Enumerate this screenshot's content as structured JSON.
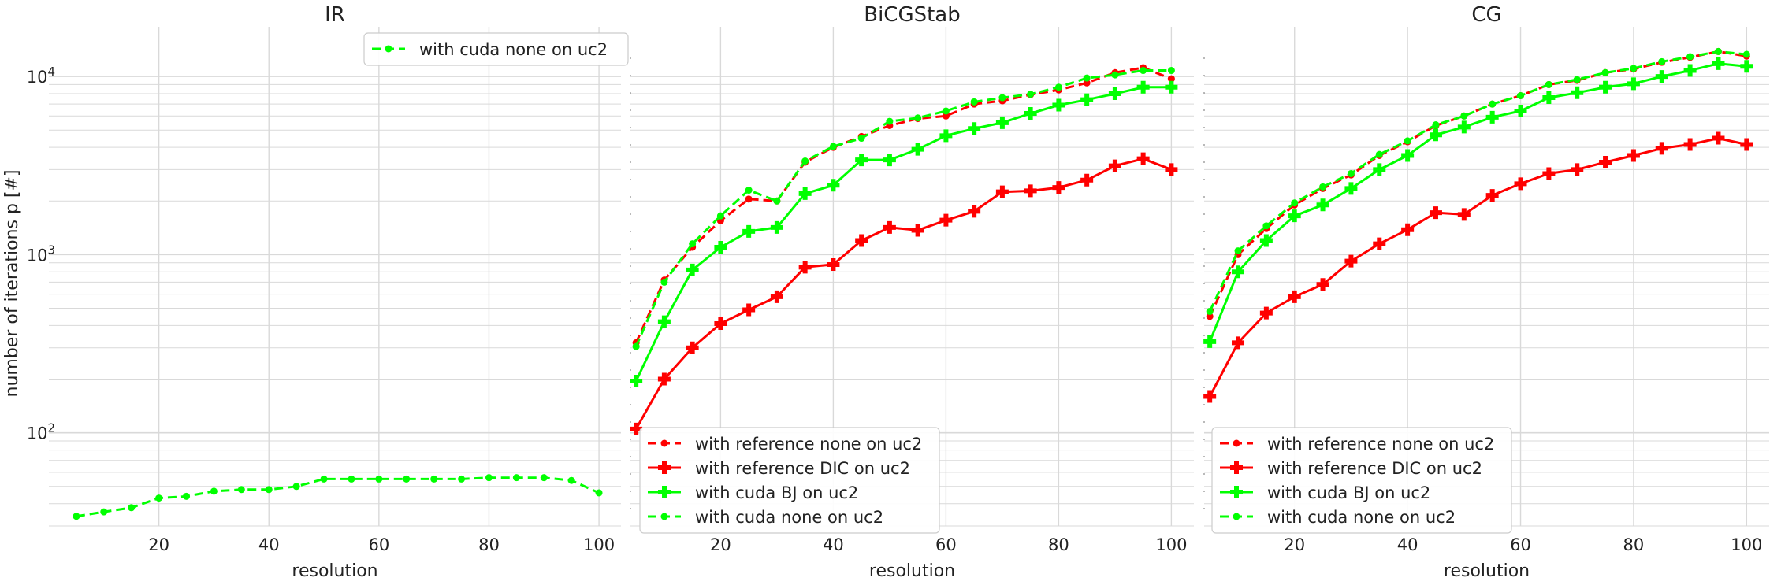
{
  "figure": {
    "ylabel": "number of iterations p [#]"
  },
  "style": {
    "series_colors": {
      "with reference none on uc2": "#ff0000",
      "with reference DIC on uc2": "#ff0000",
      "with cuda BJ on uc2": "#00ff00",
      "with cuda none on uc2": "#00ff00"
    },
    "grid_color": "#d9d9d9"
  },
  "chart_data": [
    {
      "type": "line",
      "title": "IR",
      "xlabel": "resolution",
      "ylabel": "number of iterations p [#]",
      "yscale": "log",
      "xlim": [
        0,
        104
      ],
      "ylim": [
        30,
        19000
      ],
      "xticks": [
        "20",
        "40",
        "60",
        "80",
        "100"
      ],
      "yticks": [
        "10^2",
        "10^3",
        "10^4"
      ],
      "grid": true,
      "legend_position": "top-center",
      "x": [
        5,
        10,
        15,
        20,
        25,
        30,
        35,
        40,
        45,
        50,
        55,
        60,
        65,
        70,
        75,
        80,
        85,
        90,
        95,
        100
      ],
      "series": [
        {
          "name": "with cuda none on uc2",
          "marker": "dot",
          "dash": "dashed",
          "values": [
            34,
            36,
            38,
            43,
            44,
            47,
            48,
            48,
            50,
            55,
            55,
            55,
            55,
            55,
            55,
            56,
            56,
            56,
            54,
            46
          ]
        }
      ]
    },
    {
      "type": "line",
      "title": "BiCGStab",
      "xlabel": "resolution",
      "yscale": "log",
      "xlim": [
        4,
        104
      ],
      "ylim": [
        30,
        19000
      ],
      "xticks": [
        "20",
        "40",
        "60",
        "80",
        "100"
      ],
      "grid": true,
      "legend_position": "bottom-left",
      "x": [
        5,
        10,
        15,
        20,
        25,
        30,
        35,
        40,
        45,
        50,
        55,
        60,
        65,
        70,
        75,
        80,
        85,
        90,
        95,
        100
      ],
      "series": [
        {
          "name": "with reference none on uc2",
          "marker": "dot",
          "dash": "dashed",
          "values": [
            320,
            720,
            1100,
            1550,
            2050,
            2000,
            3300,
            4000,
            4600,
            5300,
            5800,
            6000,
            7000,
            7300,
            7900,
            8400,
            9200,
            10500,
            11200,
            9700
          ]
        },
        {
          "name": "with reference DIC on uc2",
          "marker": "plus",
          "dash": "solid",
          "values": [
            105,
            200,
            300,
            410,
            490,
            580,
            850,
            880,
            1200,
            1420,
            1370,
            1560,
            1750,
            2250,
            2280,
            2380,
            2620,
            3150,
            3450,
            3000
          ]
        },
        {
          "name": "with cuda BJ on uc2",
          "marker": "plus",
          "dash": "solid",
          "values": [
            195,
            420,
            820,
            1100,
            1350,
            1420,
            2200,
            2450,
            3400,
            3400,
            3900,
            4650,
            5100,
            5500,
            6200,
            6900,
            7400,
            8000,
            8700,
            8700
          ]
        },
        {
          "name": "with cuda none on uc2",
          "marker": "dot",
          "dash": "dashed",
          "values": [
            305,
            700,
            1150,
            1650,
            2300,
            2000,
            3350,
            4050,
            4500,
            5600,
            5850,
            6400,
            7200,
            7600,
            7950,
            8700,
            9800,
            10200,
            10800,
            10800
          ]
        }
      ]
    },
    {
      "type": "line",
      "title": "CG",
      "xlabel": "resolution",
      "yscale": "log",
      "xlim": [
        4,
        104
      ],
      "ylim": [
        30,
        19000
      ],
      "xticks": [
        "20",
        "40",
        "60",
        "80",
        "100"
      ],
      "grid": true,
      "legend_position": "bottom-left",
      "x": [
        5,
        10,
        15,
        20,
        25,
        30,
        35,
        40,
        45,
        50,
        55,
        60,
        65,
        70,
        75,
        80,
        85,
        90,
        95,
        100
      ],
      "series": [
        {
          "name": "with reference none on uc2",
          "marker": "dot",
          "dash": "dashed",
          "values": [
            450,
            1000,
            1400,
            1900,
            2350,
            2800,
            3600,
            4300,
            5300,
            6000,
            7000,
            7800,
            9000,
            9500,
            10500,
            11000,
            12000,
            12800,
            13800,
            13000
          ]
        },
        {
          "name": "with reference DIC on uc2",
          "marker": "plus",
          "dash": "solid",
          "values": [
            160,
            320,
            470,
            580,
            680,
            920,
            1150,
            1380,
            1720,
            1680,
            2150,
            2500,
            2850,
            3000,
            3300,
            3600,
            3950,
            4150,
            4500,
            4150
          ]
        },
        {
          "name": "with cuda BJ on uc2",
          "marker": "plus",
          "dash": "solid",
          "values": [
            325,
            800,
            1200,
            1650,
            1900,
            2350,
            3000,
            3600,
            4700,
            5200,
            5900,
            6400,
            7600,
            8100,
            8700,
            9100,
            10000,
            10800,
            11800,
            11400
          ]
        },
        {
          "name": "with cuda none on uc2",
          "marker": "dot",
          "dash": "dashed",
          "values": [
            480,
            1050,
            1450,
            1950,
            2400,
            2850,
            3650,
            4350,
            5350,
            6000,
            7000,
            7800,
            9000,
            9600,
            10500,
            11100,
            12100,
            12900,
            13800,
            13300
          ]
        }
      ]
    }
  ]
}
